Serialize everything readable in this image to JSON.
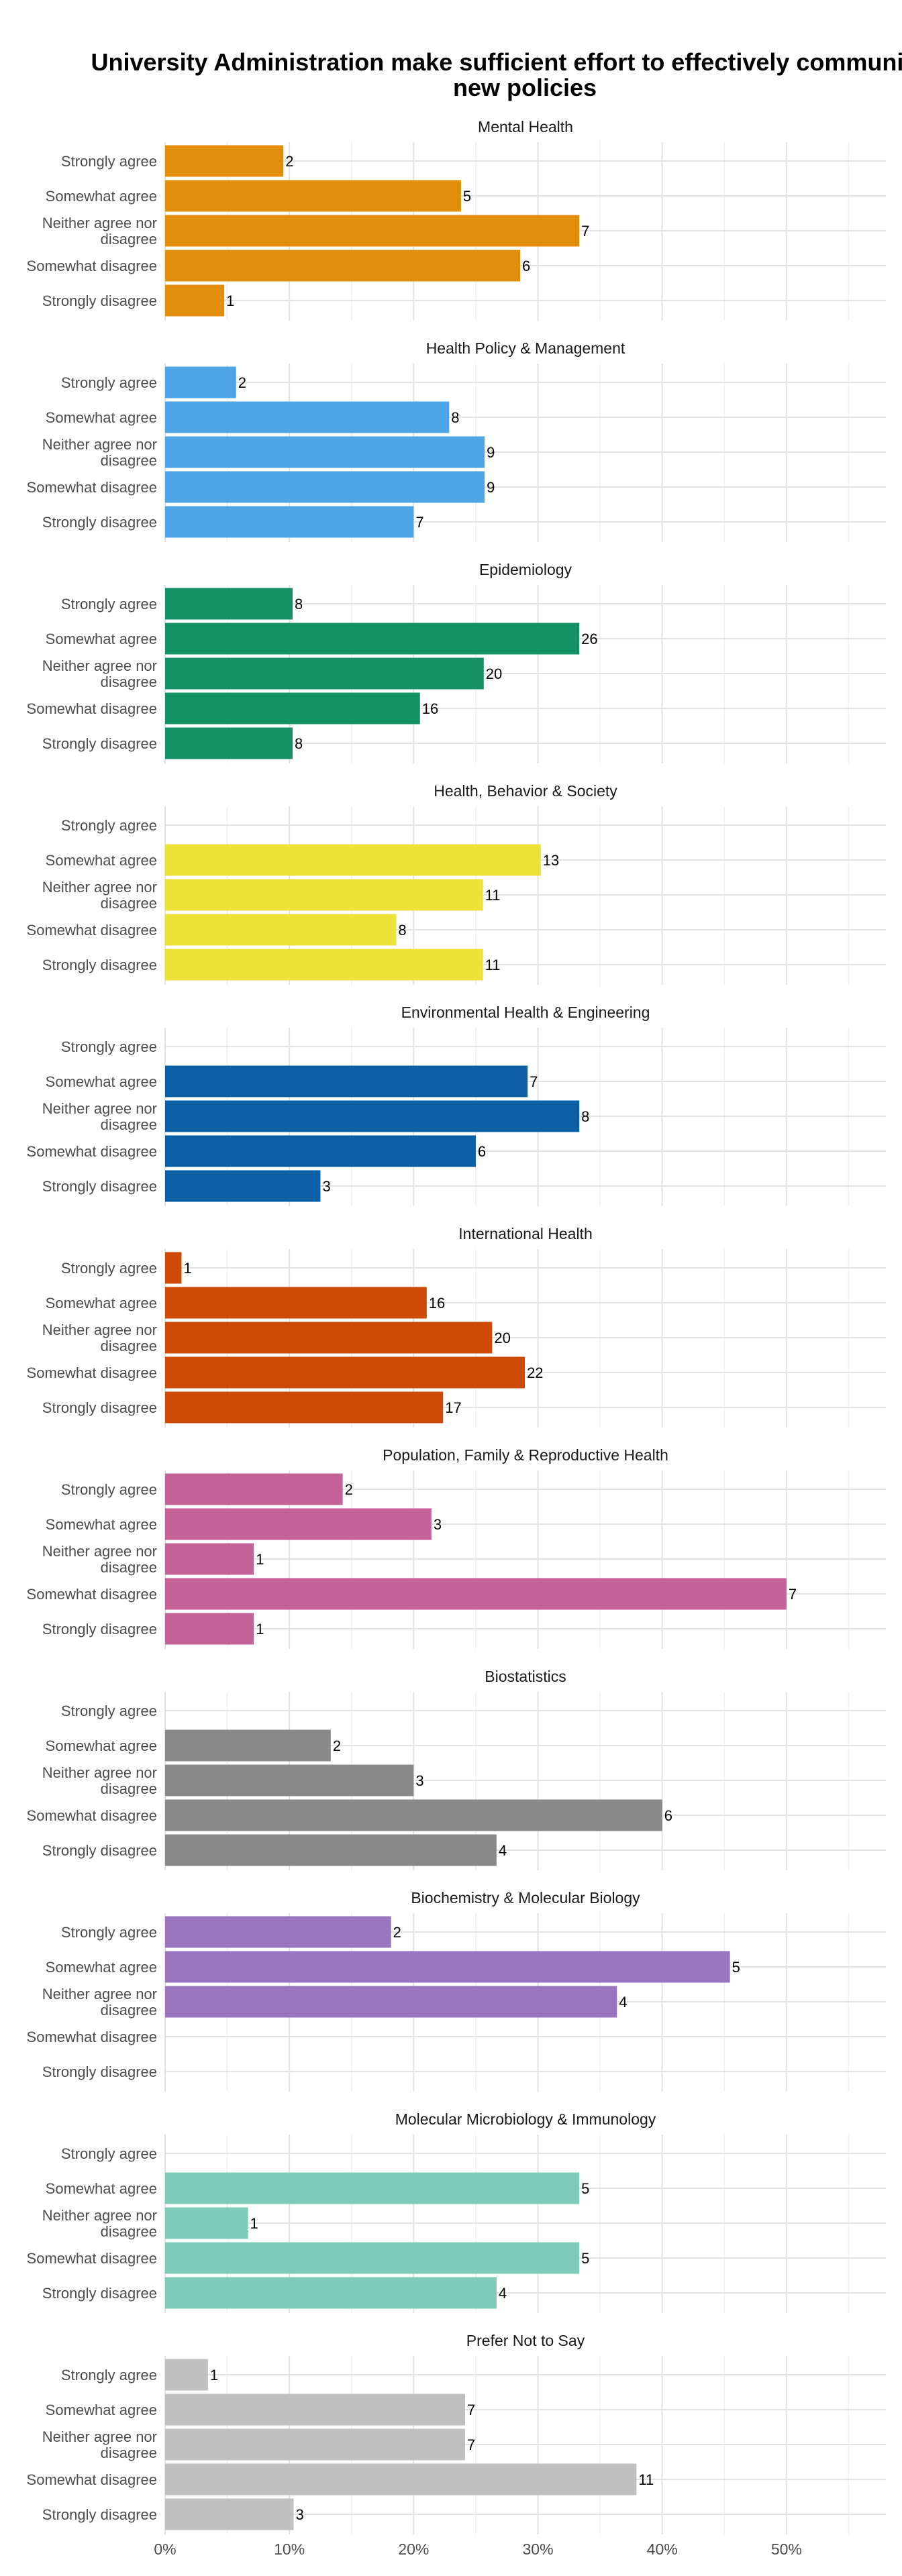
{
  "chart_data": {
    "type": "bar",
    "orientation": "horizontal",
    "title_lines": [
      "University Administration make sufficient effort to effectively communicate",
      "new policies"
    ],
    "xlabel": "",
    "ylabel": "",
    "xlim": [
      0,
      0.58
    ],
    "x_ticks": [
      0,
      0.1,
      0.2,
      0.3,
      0.4,
      0.5
    ],
    "x_tick_labels": [
      "0%",
      "10%",
      "20%",
      "30%",
      "40%",
      "50%"
    ],
    "grid": true,
    "legend": "none",
    "categories": [
      [
        "Strongly agree"
      ],
      [
        "Somewhat agree"
      ],
      [
        "Neither agree nor",
        "disagree"
      ],
      [
        "Somewhat disagree"
      ],
      [
        "Strongly disagree"
      ]
    ],
    "facets": [
      {
        "name": "Mental Health",
        "color": "#E08E0B",
        "counts": [
          2,
          5,
          7,
          6,
          1
        ],
        "shares": [
          0.0952,
          0.2381,
          0.3333,
          0.2857,
          0.0476
        ]
      },
      {
        "name": "Health Policy & Management",
        "color": "#4EA5E6",
        "counts": [
          2,
          8,
          9,
          9,
          7
        ],
        "shares": [
          0.0571,
          0.2286,
          0.2571,
          0.2571,
          0.2
        ]
      },
      {
        "name": "Epidemiology",
        "color": "#159263",
        "counts": [
          8,
          26,
          20,
          16,
          8
        ],
        "shares": [
          0.1026,
          0.3333,
          0.2564,
          0.2051,
          0.1026
        ]
      },
      {
        "name": "Health, Behavior & Society",
        "color": "#EDE238",
        "counts": [
          null,
          13,
          11,
          8,
          11
        ],
        "shares": [
          0,
          0.3023,
          0.2558,
          0.186,
          0.2558
        ]
      },
      {
        "name": "Environmental Health & Engineering",
        "color": "#0B5FA4",
        "counts": [
          null,
          7,
          8,
          6,
          3
        ],
        "shares": [
          0,
          0.2917,
          0.3333,
          0.25,
          0.125
        ]
      },
      {
        "name": "International Health",
        "color": "#CC4A06",
        "counts": [
          1,
          16,
          20,
          22,
          17
        ],
        "shares": [
          0.0132,
          0.2105,
          0.2632,
          0.2895,
          0.2237
        ]
      },
      {
        "name": "Population, Family & Reproductive Health",
        "color": "#C26297",
        "counts": [
          2,
          3,
          1,
          7,
          1
        ],
        "shares": [
          0.1429,
          0.2143,
          0.0714,
          0.5,
          0.0714
        ]
      },
      {
        "name": "Biostatistics",
        "color": "#898989",
        "counts": [
          null,
          2,
          3,
          6,
          4
        ],
        "shares": [
          0,
          0.1333,
          0.2,
          0.4,
          0.2667
        ]
      },
      {
        "name": "Biochemistry & Molecular Biology",
        "color": "#9B74BE",
        "counts": [
          2,
          5,
          4,
          null,
          null
        ],
        "shares": [
          0.1818,
          0.4545,
          0.3636,
          0,
          0
        ]
      },
      {
        "name": "Molecular Microbiology & Immunology",
        "color": "#7ECBB7",
        "counts": [
          null,
          5,
          1,
          5,
          4
        ],
        "shares": [
          0,
          0.3333,
          0.0667,
          0.3333,
          0.2667
        ]
      },
      {
        "name": "Prefer Not to Say",
        "color": "#C0C0C0",
        "counts": [
          1,
          7,
          7,
          11,
          3
        ],
        "shares": [
          0.0345,
          0.2414,
          0.2414,
          0.3793,
          0.1034
        ]
      }
    ]
  }
}
